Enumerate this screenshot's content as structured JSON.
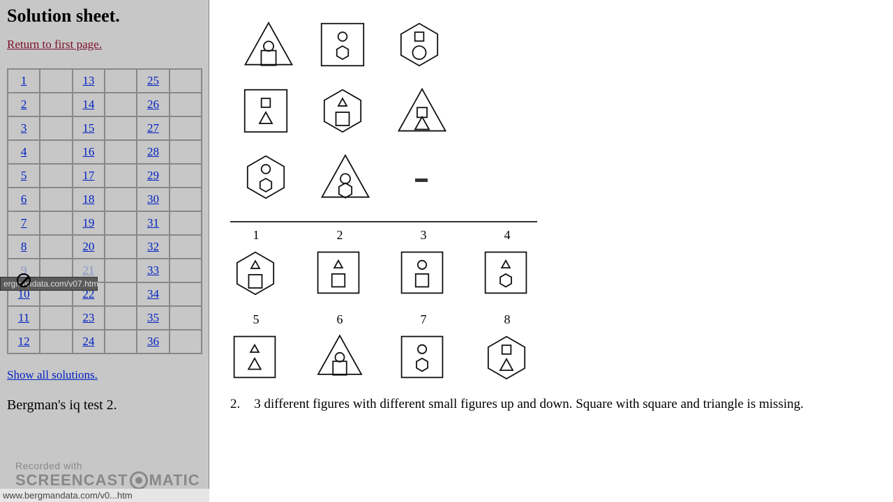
{
  "sidebar": {
    "title": "Solution sheet.",
    "return_link": "Return to first page.",
    "show_all": "Show all solutions.",
    "footer": "Bergman's iq test 2.",
    "nav_cols": [
      [
        "1",
        "2",
        "3",
        "4",
        "5",
        "6",
        "7",
        "8",
        "9",
        "10",
        "11",
        "12"
      ],
      [
        "13",
        "14",
        "15",
        "16",
        "17",
        "18",
        "19",
        "20",
        "21",
        "22",
        "23",
        "24"
      ],
      [
        "25",
        "26",
        "27",
        "28",
        "29",
        "30",
        "31",
        "32",
        "33",
        "34",
        "35",
        "36"
      ]
    ],
    "tooltip": "ergmandata.com/v07.htm",
    "statusbar": "www.bergmandata.com/v0...htm"
  },
  "watermark": {
    "line1": "Recorded with",
    "line2a": "SCREENCAST",
    "line2b": "MATIC"
  },
  "main": {
    "answer_labels_row1": [
      "1",
      "2",
      "3",
      "4"
    ],
    "answer_labels_row2": [
      "5",
      "6",
      "7",
      "8"
    ],
    "explanation_num": "2.",
    "explanation_text": "3 different figures with different small figures up and down. Square with square and triangle is missing."
  },
  "style": {
    "stroke": "#111",
    "stroke_width": 1.8,
    "dash_color": "#333"
  }
}
